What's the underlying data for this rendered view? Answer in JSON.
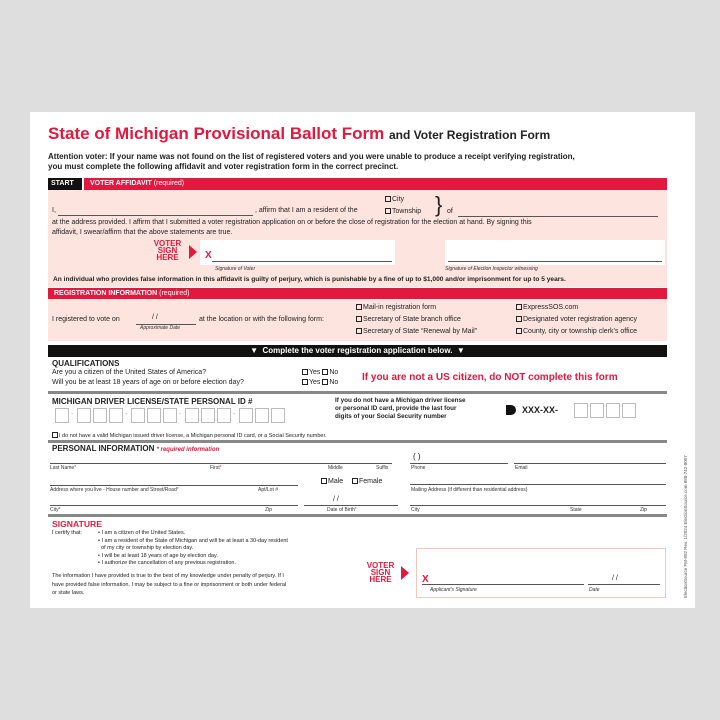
{
  "title": {
    "main": "State of Michigan Provisional Ballot Form",
    "sub": "and Voter Registration Form"
  },
  "attention": [
    "Attention voter: If your name was not found on the list of registered voters and you were unable to produce a receipt verifying registration,",
    "you must complete the following affidavit and voter registration form in the correct precinct."
  ],
  "affidavit": {
    "start": "START",
    "header": "VOTER AFFIDAVIT",
    "required": "(required)",
    "i": "I,",
    "affirm": ", affirm that I am a resident of the",
    "city": "City",
    "township": "Township",
    "of": "of",
    "line2": "at the address provided. I affirm that I submitted a voter registration application on or before the close of registration for the election at hand. By signing this",
    "line3": "affidavit, I swear/affirm that the above statements are true.",
    "sign_here": [
      "VOTER",
      "SIGN",
      "HERE"
    ],
    "x": "X",
    "sig_voter": "Signature of Voter",
    "sig_inspector": "Signature of Election Inspector witnessing",
    "perjury": "An individual who provides false information in this affidavit is guilty of perjury, which is punishable by a fine of up to $1,000 and/or imprisonment for up to 5 years."
  },
  "registration": {
    "header": "REGISTRATION INFORMATION",
    "required": "(required)",
    "registered_on": "I registered to vote on",
    "date_slashes": "/        /",
    "approx_date": "Approximate Date",
    "location": "at the location or with the following form:",
    "options": [
      "Mail-in registration form",
      "Secretary of State branch office",
      "Secretary of State “Renewal by Mail”",
      "ExpressSOS.com",
      "Designated voter registration agency",
      "County, city or township clerk’s office"
    ]
  },
  "complete_banner": "Complete the voter registration application below.",
  "qualifications": {
    "heading": "QUALIFICATIONS",
    "q1": "Are you a citizen of the United States of America?",
    "q2": "Will you be at least 18 years of age on or before election day?",
    "yes": "Yes",
    "no": "No",
    "warning": "If you are not a US citizen, do NOT complete this form"
  },
  "license": {
    "heading": "MICHIGAN DRIVER LICENSE/STATE PERSONAL ID #",
    "ssn_note": [
      "If you do not have a Michigan driver license",
      "or personal ID card, provide the last four",
      "digits of your Social Security number"
    ],
    "ssn_prefix": "XXX-XX-",
    "no_license": "I do not have a valid Michigan issued driver license, a Michigan personal ID card, or a Social Security number."
  },
  "personal": {
    "heading": "PERSONAL INFORMATION",
    "required_note": "* required information",
    "last_name": "Last Name",
    "first": "First",
    "middle": "Middle",
    "suffix": "Suffix",
    "phone": "Phone",
    "phone_paren": "(        )",
    "email": "Email",
    "address": "Address where you live - House number and Street/Road",
    "apt": "Apt/Lot #",
    "male": "Male",
    "female": "Female",
    "mailing": "Mailing Address (if different than residential address)",
    "city": "City",
    "zip": "Zip",
    "dob": "Date of Birth",
    "dob_slashes": "/        /",
    "city2": "City",
    "state": "State",
    "zip2": "Zip",
    "star": "*"
  },
  "signature": {
    "heading": "SIGNATURE",
    "certify": "I certify that:",
    "bullets": [
      "I am a citizen of the United States.",
      "I am a resident of the State of Michigan and will be at least a 30-day resident",
      "of my city or township by election day.",
      "I will be at least 18 years of age by election day.",
      "I authorize the cancellation of any previous registration."
    ],
    "statement": [
      "The information I have provided is true to the best of my knowledge under penalty of perjury. If I",
      "have provided false information, I may be subject to a fine or imprisonment or both under federal",
      "or state laws."
    ],
    "sign_here": [
      "VOTER",
      "SIGN",
      "HERE"
    ],
    "x": "X",
    "applicant": "Applicant's Signature",
    "date": "Date",
    "date_slashes": "/        /"
  },
  "side_text": "ElectionSource   FM-892   Rev. 1/2024   ElectionSource.com   888-742-8007",
  "colors": {
    "accent": "#e3183e",
    "pink": "#fde4df",
    "background": "#dedede"
  }
}
